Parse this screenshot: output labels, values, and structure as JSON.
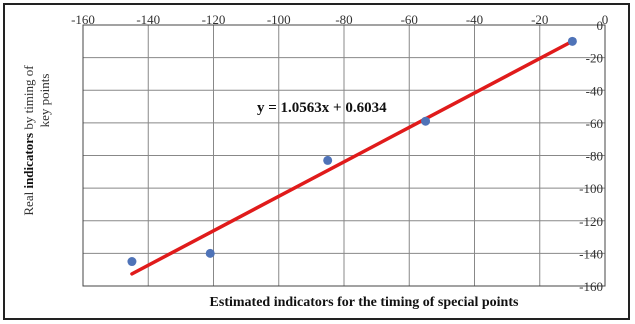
{
  "chart_data": {
    "type": "scatter",
    "title": "",
    "xlabel": "Estimated indicators for the timing of special points",
    "ylabel_parts": [
      "Real ",
      "indicators",
      " by timing of"
    ],
    "ylabel_line2": "key points",
    "xlim": [
      -160,
      0
    ],
    "ylim": [
      -160,
      0
    ],
    "x_ticks": [
      -160,
      -140,
      -120,
      -100,
      -80,
      -60,
      -40,
      -20,
      0
    ],
    "y_ticks": [
      0,
      -20,
      -40,
      -60,
      -80,
      -100,
      -120,
      -140,
      -160
    ],
    "x_tick_labels": [
      "-160",
      "-140",
      "-120",
      "-100",
      "-80",
      "-60",
      "-40",
      "-20",
      "0"
    ],
    "y_tick_labels": [
      "0",
      "-20",
      "-40",
      "-60",
      "-80",
      "-100",
      "-120",
      "-140",
      "-160"
    ],
    "grid": true,
    "series": [
      {
        "points": [
          [
            -145,
            -145
          ],
          [
            -121,
            -140
          ],
          [
            -85,
            -83
          ],
          [
            -55,
            -59
          ],
          [
            -10,
            -10
          ]
        ],
        "color": "#4f73b8"
      }
    ],
    "trendline": {
      "slope": 1.0563,
      "intercept": 0.6034,
      "x_range": [
        -145,
        -10
      ],
      "equation": "y = 1.0563x + 0.6034",
      "color": "#e01b1b"
    }
  }
}
